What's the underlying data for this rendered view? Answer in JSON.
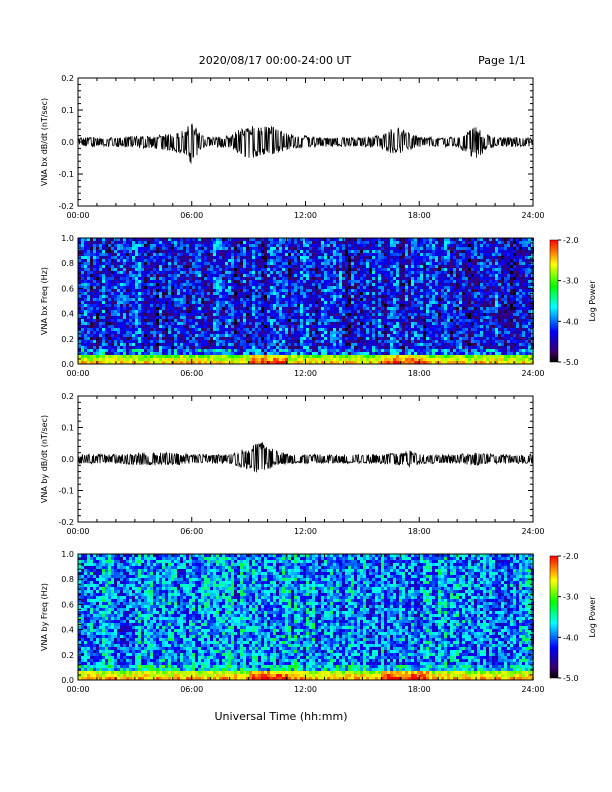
{
  "header": {
    "title": "2020/08/17  00:00-24:00 UT",
    "page": "Page 1/1"
  },
  "footer": {
    "xlabel": "Universal Time (hh:mm)"
  },
  "colors": {
    "trace": "#000000",
    "axis": "#000000",
    "colormap": [
      "#000000",
      "#3a0066",
      "#0000ff",
      "#00ffff",
      "#00ff00",
      "#ffff00",
      "#ff0000"
    ]
  },
  "chart_data": [
    {
      "type": "line",
      "panel": "bx-waveform",
      "ylabel": "VNA bx dB/dt (nT/sec)",
      "xticks": [
        "00:00",
        "06:00",
        "12:00",
        "18:00",
        "24:00"
      ],
      "xlim_hours": [
        0,
        24
      ],
      "yticks": [
        "0.2",
        "0.1",
        "0.0",
        "-0.1",
        "-0.2"
      ],
      "ylim": [
        -0.2,
        0.2
      ],
      "series": [
        {
          "x_hours": [
            0,
            1,
            2,
            3,
            4,
            4.5,
            5,
            5.5,
            6,
            6.5,
            7,
            8,
            8.5,
            9,
            9.5,
            10,
            10.5,
            11,
            11.5,
            12,
            13,
            14,
            15,
            16,
            16.5,
            17,
            17.5,
            18,
            19,
            20,
            20.5,
            21,
            21.5,
            22,
            23,
            24
          ],
          "envelope_upper": [
            0.015,
            0.015,
            0.015,
            0.02,
            0.02,
            0.025,
            0.025,
            0.035,
            0.065,
            0.02,
            0.015,
            0.02,
            0.04,
            0.05,
            0.05,
            0.05,
            0.045,
            0.03,
            0.02,
            0.02,
            0.015,
            0.015,
            0.015,
            0.02,
            0.04,
            0.045,
            0.03,
            0.015,
            0.015,
            0.015,
            0.03,
            0.05,
            0.025,
            0.015,
            0.015,
            0.015
          ],
          "envelope_lower": [
            -0.015,
            -0.015,
            -0.015,
            -0.02,
            -0.02,
            -0.025,
            -0.03,
            -0.04,
            -0.07,
            -0.02,
            -0.015,
            -0.02,
            -0.045,
            -0.05,
            -0.05,
            -0.045,
            -0.035,
            -0.025,
            -0.02,
            -0.02,
            -0.015,
            -0.015,
            -0.015,
            -0.02,
            -0.035,
            -0.035,
            -0.025,
            -0.015,
            -0.015,
            -0.015,
            -0.035,
            -0.06,
            -0.025,
            -0.015,
            -0.015,
            -0.015
          ]
        }
      ]
    },
    {
      "type": "heatmap",
      "panel": "bx-spectrogram",
      "ylabel": "VNA bx Freq (Hz)",
      "xticks": [
        "00:00",
        "06:00",
        "12:00",
        "18:00",
        "24:00"
      ],
      "xlim_hours": [
        0,
        24
      ],
      "yticks": [
        "1.0",
        "0.8",
        "0.6",
        "0.4",
        "0.2",
        "0.0"
      ],
      "ylim": [
        0,
        1
      ],
      "colorbar": {
        "label": "Log Power",
        "ticks": [
          "-2.0",
          "-3.0",
          "-4.0",
          "-5.0"
        ],
        "range": [
          -5,
          -2
        ]
      },
      "background_level": -4.3,
      "low_freq_level": -3.0,
      "enhanced_intervals_hours": [
        [
          9,
          11
        ],
        [
          16,
          18.5
        ]
      ]
    },
    {
      "type": "line",
      "panel": "by-waveform",
      "ylabel": "VNA by dB/dt (nT/sec)",
      "xticks": [
        "00:00",
        "06:00",
        "12:00",
        "18:00",
        "24:00"
      ],
      "xlim_hours": [
        0,
        24
      ],
      "yticks": [
        "0.2",
        "0.1",
        "0.0",
        "-0.1",
        "-0.2"
      ],
      "ylim": [
        -0.2,
        0.2
      ],
      "series": [
        {
          "x_hours": [
            0,
            1,
            2,
            3,
            4,
            5,
            6,
            7,
            8,
            8.5,
            9,
            9.5,
            10,
            10.5,
            11,
            12,
            13,
            14,
            15,
            16,
            17,
            17.5,
            18,
            19,
            20,
            21,
            22,
            23,
            24
          ],
          "envelope_upper": [
            0.015,
            0.015,
            0.015,
            0.02,
            0.02,
            0.02,
            0.015,
            0.015,
            0.015,
            0.025,
            0.04,
            0.06,
            0.045,
            0.025,
            0.02,
            0.015,
            0.015,
            0.015,
            0.015,
            0.015,
            0.02,
            0.03,
            0.015,
            0.015,
            0.015,
            0.02,
            0.015,
            0.015,
            0.015
          ],
          "envelope_lower": [
            -0.015,
            -0.015,
            -0.015,
            -0.02,
            -0.02,
            -0.02,
            -0.015,
            -0.015,
            -0.015,
            -0.025,
            -0.035,
            -0.045,
            -0.035,
            -0.02,
            -0.02,
            -0.015,
            -0.015,
            -0.015,
            -0.015,
            -0.015,
            -0.02,
            -0.025,
            -0.015,
            -0.015,
            -0.015,
            -0.02,
            -0.015,
            -0.015,
            -0.015
          ]
        }
      ]
    },
    {
      "type": "heatmap",
      "panel": "by-spectrogram",
      "ylabel": "VNA by Freq (Hz)",
      "xticks": [
        "00:00",
        "06:00",
        "12:00",
        "18:00",
        "24:00"
      ],
      "xlim_hours": [
        0,
        24
      ],
      "yticks": [
        "1.0",
        "0.8",
        "0.6",
        "0.4",
        "0.2",
        "0.0"
      ],
      "ylim": [
        0,
        1
      ],
      "colorbar": {
        "label": "Log Power",
        "ticks": [
          "-2.0",
          "-3.0",
          "-4.0",
          "-5.0"
        ],
        "range": [
          -5,
          -2
        ]
      },
      "background_level": -3.9,
      "low_freq_level": -2.9,
      "enhanced_intervals_hours": [
        [
          9,
          11
        ],
        [
          16,
          18.5
        ]
      ]
    }
  ]
}
